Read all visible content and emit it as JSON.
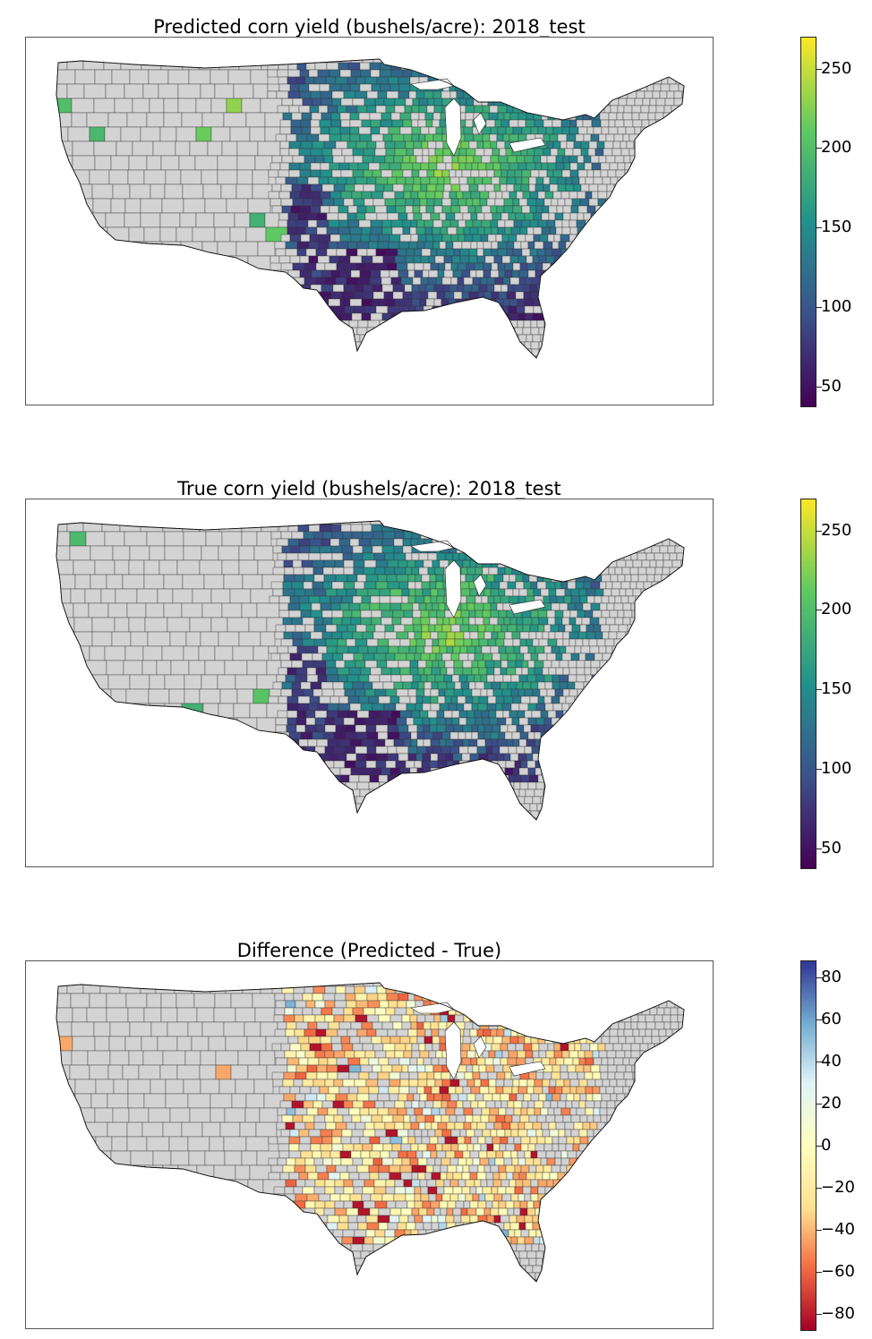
{
  "panels": [
    {
      "title": "Predicted corn yield (bushels/acre): 2018_test",
      "colormap": "viridis",
      "ticks": [
        {
          "value": 50,
          "label": "50"
        },
        {
          "value": 100,
          "label": "100"
        },
        {
          "value": 150,
          "label": "150"
        },
        {
          "value": 200,
          "label": "200"
        },
        {
          "value": 250,
          "label": "250"
        }
      ],
      "range": [
        37,
        270
      ]
    },
    {
      "title": "True corn yield (bushels/acre): 2018_test",
      "colormap": "viridis",
      "ticks": [
        {
          "value": 50,
          "label": "50"
        },
        {
          "value": 100,
          "label": "100"
        },
        {
          "value": 150,
          "label": "150"
        },
        {
          "value": 200,
          "label": "200"
        },
        {
          "value": 250,
          "label": "250"
        }
      ],
      "range": [
        37,
        270
      ]
    },
    {
      "title": "Difference (Predicted - True)",
      "colormap": "RdYlBu",
      "ticks": [
        {
          "value": -80,
          "label": "−80"
        },
        {
          "value": -60,
          "label": "−60"
        },
        {
          "value": -40,
          "label": "−40"
        },
        {
          "value": -20,
          "label": "−20"
        },
        {
          "value": 0,
          "label": "0"
        },
        {
          "value": 20,
          "label": "20"
        },
        {
          "value": 40,
          "label": "40"
        },
        {
          "value": 60,
          "label": "60"
        },
        {
          "value": 80,
          "label": "80"
        }
      ],
      "range": [
        -88,
        88
      ]
    }
  ],
  "colors": {
    "no_data": "#d3d3d3",
    "border": "#333333",
    "viridis": [
      "#440154",
      "#3b528b",
      "#21918c",
      "#5ec962",
      "#fde725"
    ],
    "RdYlBu": [
      "#a50026",
      "#f46d43",
      "#fee090",
      "#ffffbf",
      "#e0f3f8",
      "#74add1",
      "#313695"
    ]
  }
}
